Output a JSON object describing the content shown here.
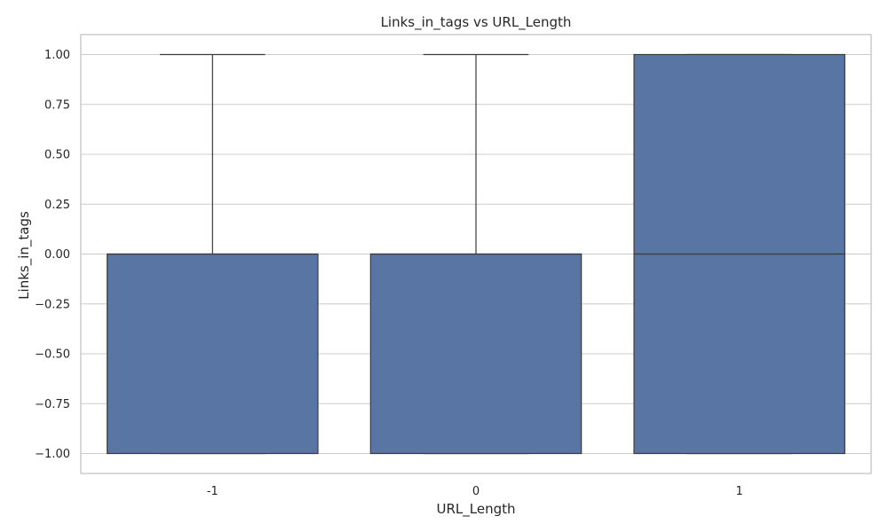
{
  "chart_data": {
    "type": "box",
    "title": "Links_in_tags vs URL_Length",
    "xlabel": "URL_Length",
    "ylabel": "Links_in_tags",
    "categories": [
      "-1",
      "0",
      "1"
    ],
    "ylim": [
      -1.1,
      1.1
    ],
    "yticks": [
      -1.0,
      -0.75,
      -0.5,
      -0.25,
      0.0,
      0.25,
      0.5,
      0.75,
      1.0
    ],
    "ytick_labels": [
      "−1.00",
      "−0.75",
      "−0.50",
      "−0.25",
      "0.00",
      "0.25",
      "0.50",
      "0.75",
      "1.00"
    ],
    "grid": true,
    "boxes": [
      {
        "category": "-1",
        "whisker_low": -1,
        "q1": -1,
        "median": 0,
        "q3": 0,
        "whisker_high": 1
      },
      {
        "category": "0",
        "whisker_low": -1,
        "q1": -1,
        "median": 0,
        "q3": 0,
        "whisker_high": 1
      },
      {
        "category": "1",
        "whisker_low": -1,
        "q1": -1,
        "median": 0,
        "q3": 1,
        "whisker_high": 1
      }
    ],
    "colors": {
      "box_fill": "#5875a4",
      "box_edge": "#3c3c3c",
      "grid": "#cccccc",
      "frame": "#cccccc",
      "text": "#262626"
    }
  }
}
